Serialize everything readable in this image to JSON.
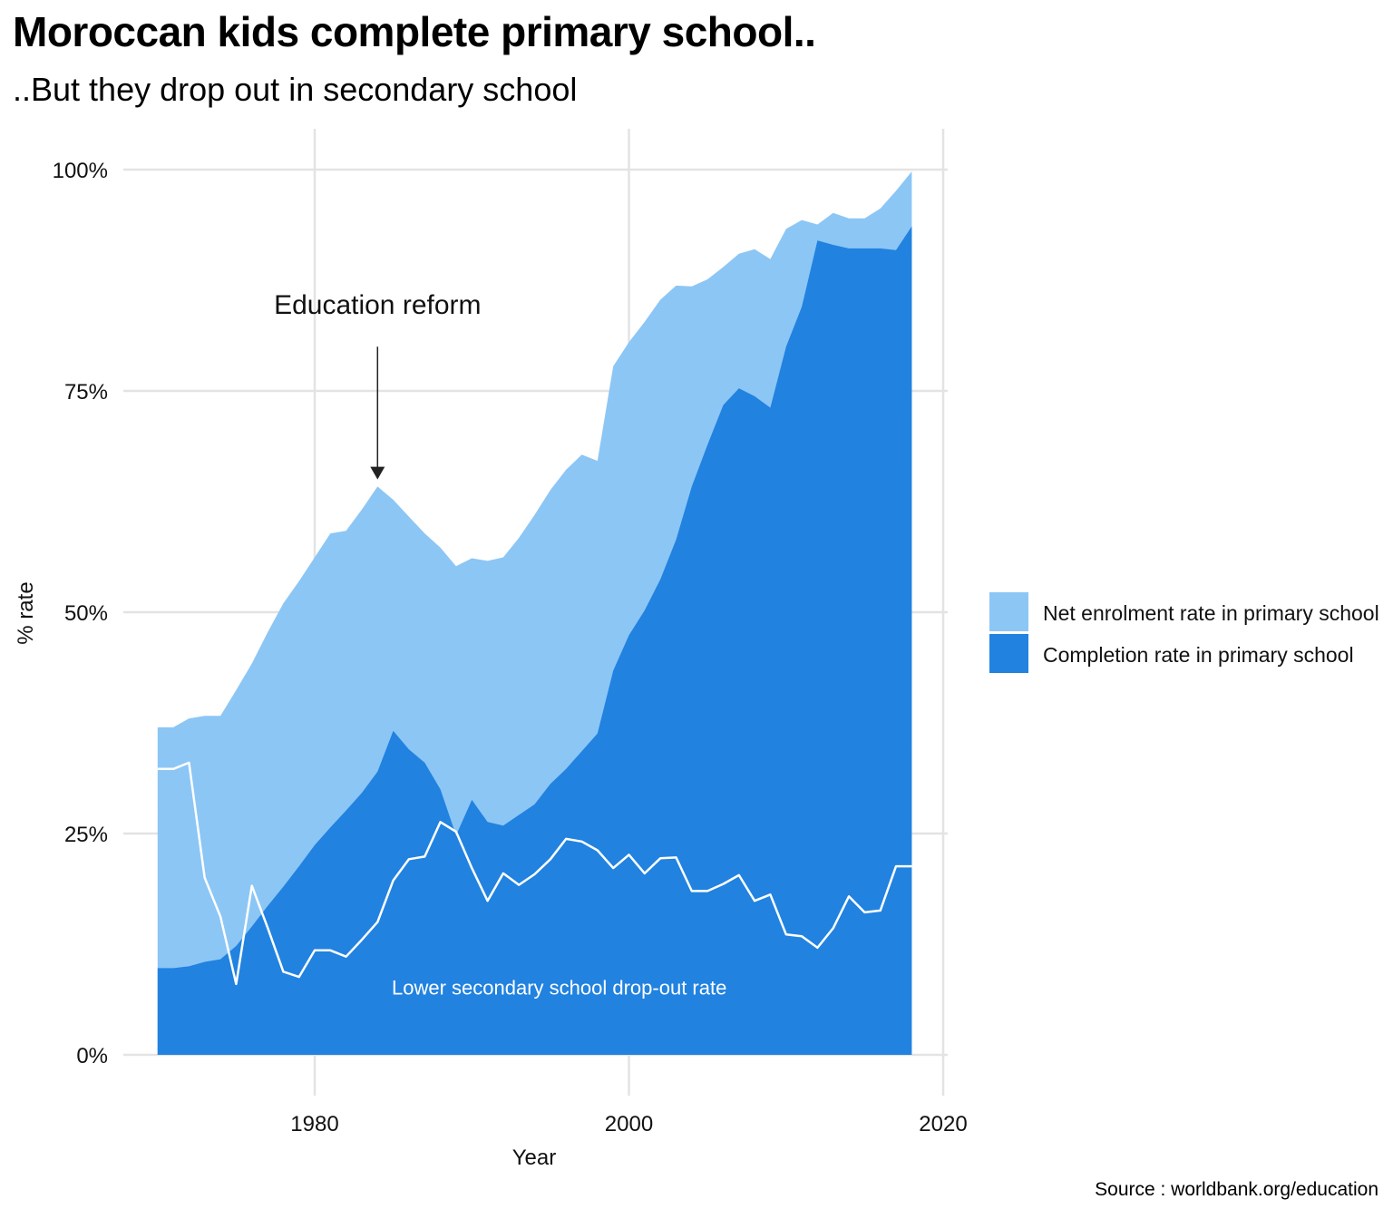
{
  "title": "Moroccan kids complete primary school..",
  "subtitle": "..But they drop out in secondary school",
  "source": "Source : worldbank.org/education",
  "chart_data": {
    "type": "area",
    "xlabel": "Year",
    "ylabel": "% rate",
    "xlim": [
      1969,
      2020
    ],
    "ylim": [
      0,
      100
    ],
    "x_ticks": [
      1980,
      2000,
      2020
    ],
    "x_tick_labels": [
      "1980",
      "2000",
      "2020"
    ],
    "y_ticks": [
      0,
      25,
      50,
      75,
      100
    ],
    "y_tick_labels": [
      "0%",
      "25%",
      "50%",
      "75%",
      "100%"
    ],
    "grid": true,
    "legend_position": "right",
    "colors": {
      "net_enrolment": "#8cc6f5",
      "completion": "#2182e0",
      "dropout": "#ffffff",
      "grid": "#e3e3e3"
    },
    "x": [
      1970,
      1971,
      1972,
      1973,
      1974,
      1975,
      1976,
      1977,
      1978,
      1979,
      1980,
      1981,
      1982,
      1983,
      1984,
      1985,
      1986,
      1987,
      1988,
      1989,
      1990,
      1991,
      1992,
      1993,
      1994,
      1995,
      1996,
      1997,
      1998,
      1999,
      2000,
      2001,
      2002,
      2003,
      2004,
      2005,
      2006,
      2007,
      2008,
      2009,
      2010,
      2011,
      2012,
      2013,
      2014,
      2015,
      2016,
      2017,
      2018
    ],
    "series": [
      {
        "name": "Net enrolment rate in primary school",
        "values": [
          37,
          37,
          38,
          38.3,
          38.3,
          41.2,
          44.2,
          47.7,
          51,
          53.5,
          56.2,
          58.9,
          59.2,
          61.6,
          64.2,
          62.7,
          60.8,
          58.9,
          57.3,
          55.2,
          56.1,
          55.8,
          56.2,
          58.4,
          61.0,
          63.8,
          66.1,
          67.8,
          67.1,
          77.8,
          80.5,
          82.8,
          85.3,
          86.9,
          86.8,
          87.6,
          89.0,
          90.5,
          91.0,
          89.9,
          93.3,
          94.3,
          93.8,
          95.1,
          94.5,
          94.5,
          95.6,
          97.6,
          99.8
        ]
      },
      {
        "name": "Completion rate in primary school",
        "values": [
          9.8,
          9.8,
          10.0,
          10.5,
          10.8,
          12.3,
          14.5,
          16.8,
          19.0,
          21.3,
          23.7,
          25.7,
          27.6,
          29.6,
          32.0,
          36.6,
          34.5,
          33.0,
          30.0,
          24.8,
          28.8,
          26.3,
          25.9,
          27.1,
          28.3,
          30.6,
          32.3,
          34.3,
          36.3,
          43.4,
          47.4,
          50.2,
          53.7,
          58.2,
          64.2,
          68.9,
          73.4,
          75.3,
          74.4,
          73.1,
          80.0,
          84.5,
          92.0,
          91.5,
          91.1,
          91.1,
          91.1,
          90.9,
          93.6
        ]
      },
      {
        "name": "Lower secondary school drop-out rate",
        "values": [
          32.3,
          32.3,
          33.0,
          20.0,
          15.6,
          8.0,
          19.1,
          14.4,
          9.4,
          8.8,
          11.8,
          11.8,
          11.1,
          13.0,
          15.0,
          19.7,
          22.1,
          22.4,
          26.3,
          25.2,
          21.1,
          17.4,
          20.5,
          19.2,
          20.4,
          22.1,
          24.4,
          24.1,
          23.1,
          21.1,
          22.6,
          20.5,
          22.2,
          22.3,
          18.5,
          18.5,
          19.3,
          20.3,
          17.4,
          18.1,
          13.6,
          13.4,
          12.1,
          14.3,
          17.9,
          16.1,
          16.3,
          21.3,
          21.3
        ]
      }
    ],
    "annotations": [
      {
        "text": "Education reform",
        "x": 1984,
        "arrow_from_y": 80,
        "arrow_to_y": 65
      },
      {
        "text": "Lower secondary school drop-out rate",
        "x": 1984.6,
        "y": 6.8
      }
    ]
  }
}
